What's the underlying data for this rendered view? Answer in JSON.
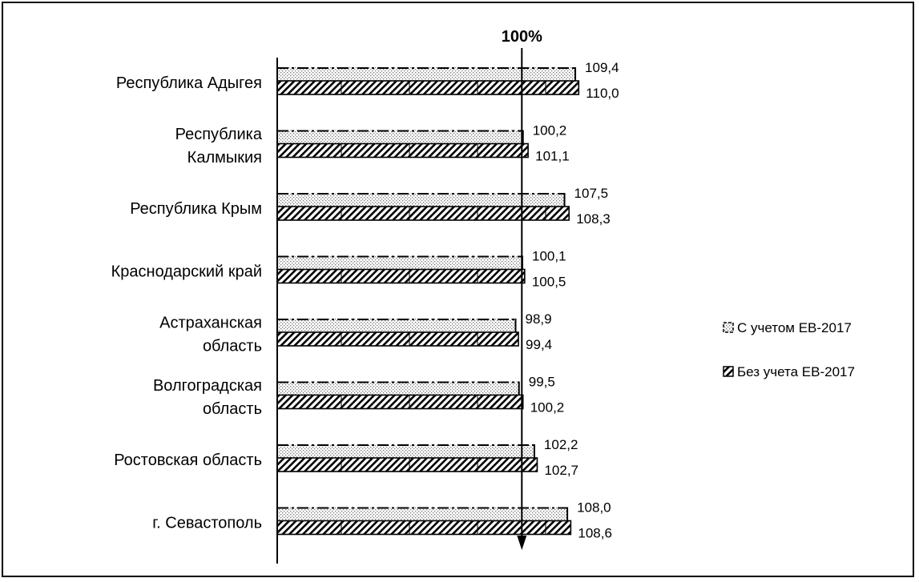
{
  "chart_data": {
    "type": "bar",
    "orientation": "horizontal",
    "categories": [
      "Республика Адыгея",
      "Республика Калмыкия",
      "Республика Крым",
      "Краснодарский край",
      "Астраханская область",
      "Волгоградская область",
      "Ростовская область",
      "г. Севастополь"
    ],
    "category_lines": [
      [
        "Республика Адыгея"
      ],
      [
        "Республика",
        "Калмыкия"
      ],
      [
        "Республика Крым"
      ],
      [
        "Краснодарский край"
      ],
      [
        "Астраханская",
        "область"
      ],
      [
        "Волгоградская",
        "область"
      ],
      [
        "Ростовская область"
      ],
      [
        "г. Севастополь"
      ]
    ],
    "series": [
      {
        "name": "С учетом ЕВ-2017",
        "values": [
          109.4,
          100.2,
          107.5,
          100.1,
          98.9,
          99.5,
          102.2,
          108.0
        ],
        "labels": [
          "109,4",
          "100,2",
          "107,5",
          "100,1",
          "98,9",
          "99,5",
          "102,2",
          "108,0"
        ],
        "pattern": "dotted"
      },
      {
        "name": "Без учета ЕВ-2017",
        "values": [
          110.0,
          101.1,
          108.3,
          100.5,
          99.4,
          100.2,
          102.7,
          108.6
        ],
        "labels": [
          "110,0",
          "101,1",
          "108,3",
          "100,5",
          "99,4",
          "100,2",
          "102,7",
          "108,6"
        ],
        "pattern": "hatched"
      }
    ],
    "reference_line": {
      "value": 100,
      "label": "100%"
    },
    "xlim": [
      57,
      115
    ],
    "legend_position": "right",
    "grid": false
  }
}
